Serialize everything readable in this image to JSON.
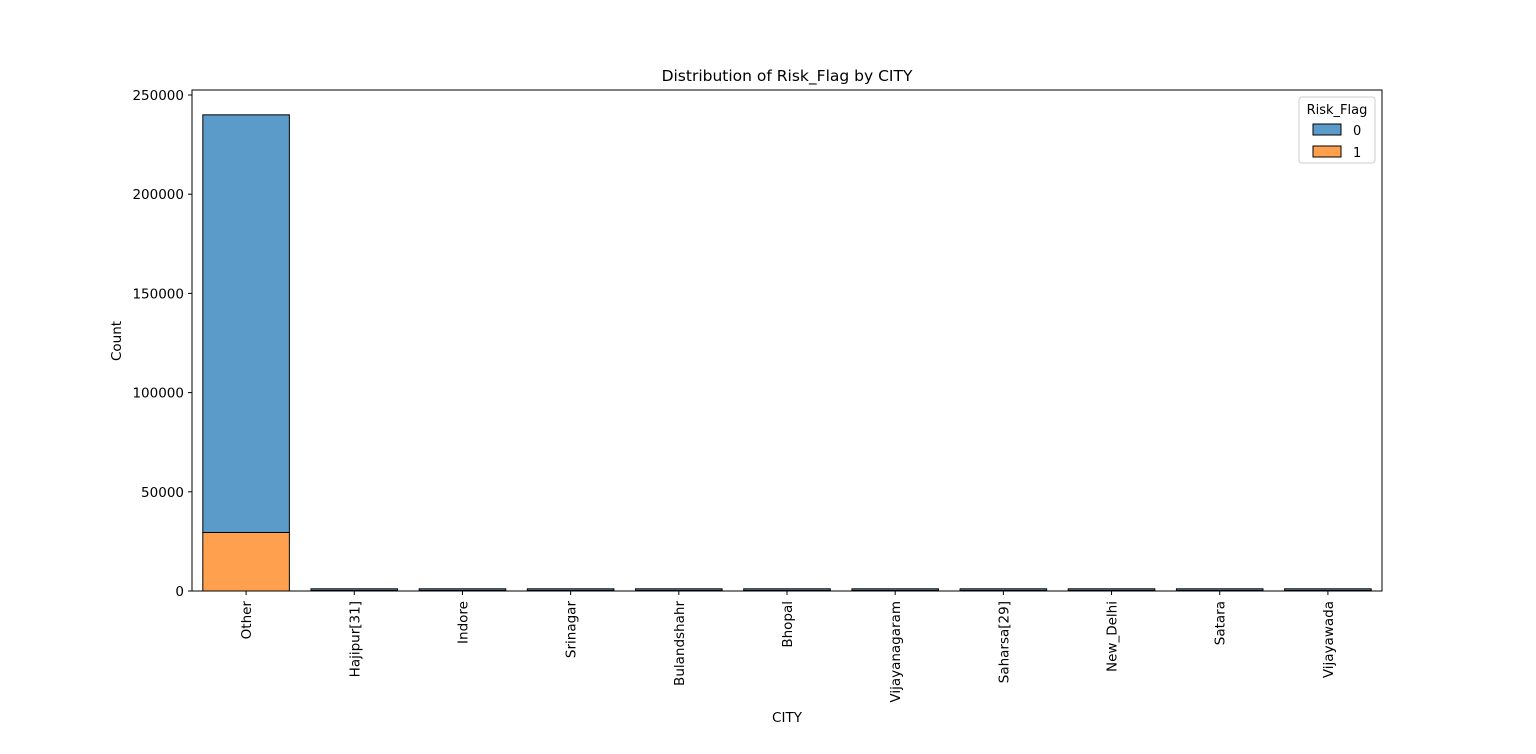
{
  "chart_data": {
    "type": "bar",
    "stacked": true,
    "title": "Distribution of Risk_Flag by CITY",
    "xlabel": "CITY",
    "ylabel": "Count",
    "ylim": [
      0,
      252000
    ],
    "yticks": [
      0,
      50000,
      100000,
      150000,
      200000,
      250000
    ],
    "ytick_labels": [
      "0",
      "50000",
      "100000",
      "150000",
      "200000",
      "250000"
    ],
    "grid": false,
    "legend": {
      "title": "Risk_Flag",
      "position": "top-right"
    },
    "categories": [
      "Other",
      "Hajipur[31]",
      "Indore",
      "Srinagar",
      "Bulandshahr",
      "Bhopal",
      "Vijayanagaram",
      "Saharsa[29]",
      "New_Delhi",
      "Satara",
      "Vijayawada"
    ],
    "series": [
      {
        "name": "0",
        "color": "#5b9bca",
        "values": [
          210500,
          800,
          800,
          800,
          800,
          800,
          800,
          800,
          800,
          800,
          800
        ]
      },
      {
        "name": "1",
        "color": "#ffa04f",
        "values": [
          29500,
          300,
          300,
          300,
          300,
          300,
          300,
          300,
          300,
          300,
          300
        ]
      }
    ]
  }
}
